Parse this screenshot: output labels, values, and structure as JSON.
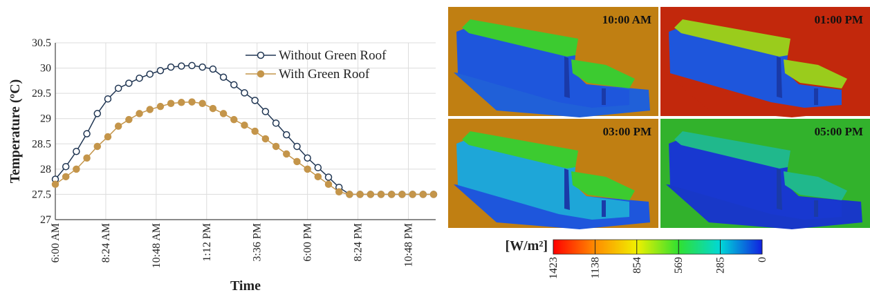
{
  "chart_data": {
    "type": "line",
    "xlabel": "Time",
    "ylabel": "Temperature (ºC)",
    "x": [
      6,
      6.5,
      7,
      7.5,
      8,
      8.5,
      9,
      9.5,
      10,
      10.5,
      11,
      11.5,
      12,
      12.5,
      13,
      13.5,
      14,
      14.5,
      15,
      15.5,
      16,
      16.5,
      17,
      17.5,
      18,
      18.5,
      19,
      19.5,
      20,
      20.5,
      21,
      21.5,
      22,
      22.5,
      23,
      23.5,
      24
    ],
    "series": [
      {
        "name": "Without Green Roof",
        "color": "#1f3552",
        "marker_fill": "#ffffff",
        "values": [
          27.8,
          28.05,
          28.35,
          28.7,
          29.1,
          29.39,
          29.6,
          29.7,
          29.8,
          29.88,
          29.95,
          30.02,
          30.04,
          30.05,
          30.02,
          29.98,
          29.82,
          29.67,
          29.51,
          29.36,
          29.14,
          28.91,
          28.68,
          28.45,
          28.22,
          28.03,
          27.84,
          27.64,
          27.5,
          27.5,
          27.5,
          27.5,
          27.5,
          27.5,
          27.5,
          27.5,
          27.5
        ]
      },
      {
        "name": "With Green Roof",
        "color": "#c4954a",
        "marker_fill": "#c4954a",
        "values": [
          27.7,
          27.85,
          28.0,
          28.22,
          28.45,
          28.64,
          28.85,
          28.98,
          29.1,
          29.18,
          29.24,
          29.3,
          29.32,
          29.33,
          29.3,
          29.2,
          29.1,
          28.98,
          28.87,
          28.75,
          28.6,
          28.45,
          28.3,
          28.15,
          28.0,
          27.85,
          27.7,
          27.55,
          27.5,
          27.5,
          27.5,
          27.5,
          27.5,
          27.5,
          27.5,
          27.5,
          27.5
        ]
      }
    ],
    "xlim": [
      6,
      24.1
    ],
    "xticks": [
      {
        "value": 6,
        "label": "6:00 AM"
      },
      {
        "value": 8.4,
        "label": "8:24 AM"
      },
      {
        "value": 10.8,
        "label": "10:48 AM"
      },
      {
        "value": 13.2,
        "label": "1:12 PM"
      },
      {
        "value": 15.6,
        "label": "3:36 PM"
      },
      {
        "value": 18,
        "label": "6:00 PM"
      },
      {
        "value": 20.4,
        "label": "8:24 PM"
      },
      {
        "value": 22.8,
        "label": "10:48 PM"
      }
    ],
    "ylim": [
      27,
      30.5
    ],
    "yticks": [
      27,
      27.5,
      28,
      28.5,
      29,
      29.5,
      30,
      30.5
    ],
    "grid": true,
    "legend": "upper right"
  },
  "panels": [
    {
      "label": "10:00 AM"
    },
    {
      "label": "01:00 PM"
    },
    {
      "label": "03:00 PM"
    },
    {
      "label": "05:00 PM"
    }
  ],
  "colorbar": {
    "title": "[W/m²]",
    "range": [
      1423,
      0
    ],
    "ticks": [
      1423,
      1138,
      854,
      569,
      285,
      0
    ]
  }
}
